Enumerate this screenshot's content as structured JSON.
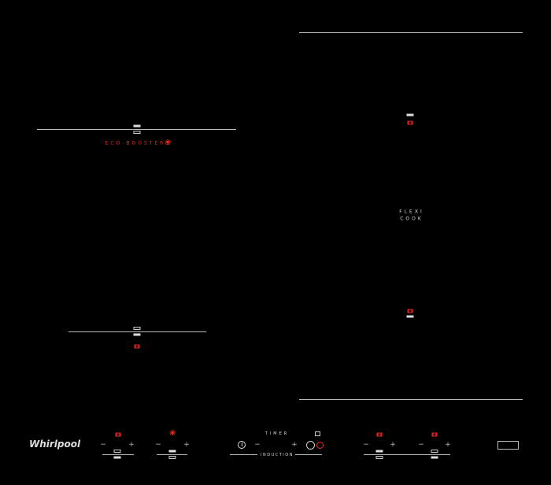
{
  "brand": "Whirlpool",
  "labels": {
    "eco_booster": "ECO-BOOSTER",
    "flexi": "FLEXI",
    "cook": "COOK",
    "timer": "TIMER",
    "induction": "INDUCTION"
  },
  "controls": {
    "minus": "−",
    "plus": "+"
  },
  "colors": {
    "background": "#000000",
    "accent": "#f02a1a",
    "lines": "#bbbbbb"
  },
  "icons": [
    "leaf-icon",
    "pot-icon",
    "power-icon",
    "lock-icon",
    "circle-icon",
    "boost-icon",
    "zone-icon"
  ]
}
